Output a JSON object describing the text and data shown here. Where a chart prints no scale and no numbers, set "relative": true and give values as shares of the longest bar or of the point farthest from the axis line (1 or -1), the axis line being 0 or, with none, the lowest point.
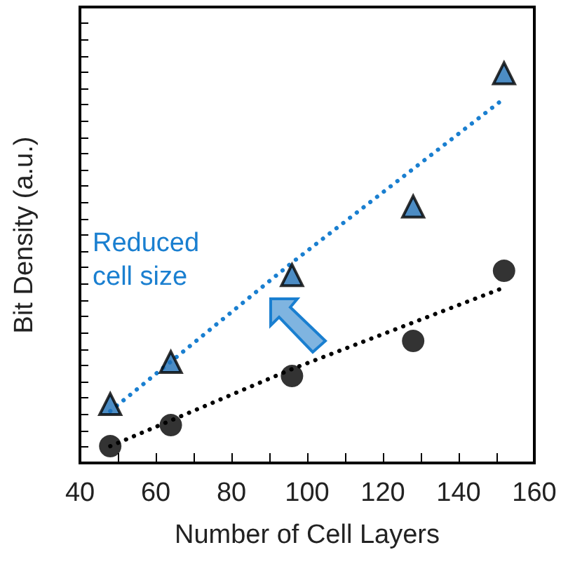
{
  "chart_data": {
    "type": "scatter",
    "relative": true,
    "xlabel": "Number of Cell Layers",
    "ylabel": "Bit Density (a.u.)",
    "xlim": [
      40,
      160
    ],
    "xticks": [
      40,
      60,
      80,
      100,
      120,
      140,
      160
    ],
    "grid": false,
    "annotations": [
      "Reduced cell size"
    ],
    "series": [
      {
        "type": "line",
        "marker": "none",
        "line_style": "dotted",
        "color": "#1a7fd0",
        "x": [
          48,
          96,
          152
        ],
        "values": [
          0.133,
          0.514,
          0.935
        ]
      },
      {
        "type": "line",
        "marker": "none",
        "line_style": "dotted",
        "color": "#000000",
        "x": [
          48,
          96,
          152
        ],
        "values": [
          0.043,
          0.241,
          0.45
        ]
      },
      {
        "marker": "triangle",
        "color": "#1f6fb5",
        "x": [
          48,
          64,
          96,
          128,
          152
        ],
        "values": [
          0.151,
          0.259,
          0.482,
          0.658,
          1
        ]
      },
      {
        "marker": "circle",
        "color": "#000000",
        "x": [
          48,
          64,
          96,
          128,
          152
        ],
        "values": [
          0.043,
          0.097,
          0.223,
          0.313,
          0.493
        ]
      }
    ]
  }
}
